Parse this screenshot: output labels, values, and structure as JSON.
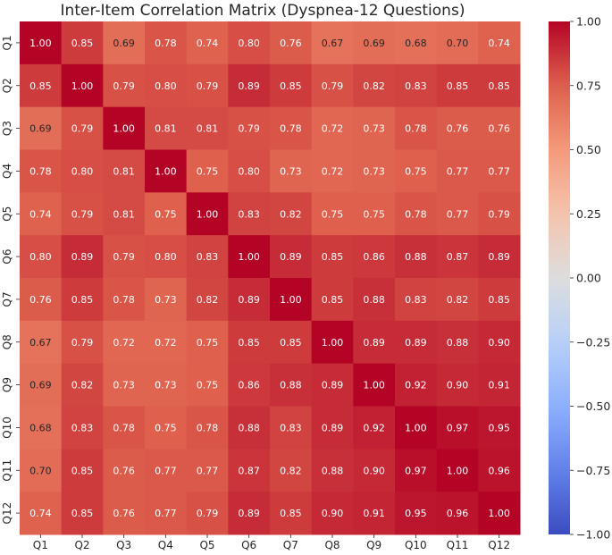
{
  "chart_data": {
    "type": "heatmap",
    "title": "Inter-Item Correlation Matrix (Dyspnea-12 Questions)",
    "xlabel": "",
    "ylabel": "",
    "x_categories": [
      "Q1",
      "Q2",
      "Q3",
      "Q4",
      "Q5",
      "Q6",
      "Q7",
      "Q8",
      "Q9",
      "Q10",
      "Q11",
      "Q12"
    ],
    "y_categories": [
      "Q1",
      "Q2",
      "Q3",
      "Q4",
      "Q5",
      "Q6",
      "Q7",
      "Q8",
      "Q9",
      "Q10",
      "Q11",
      "Q12"
    ],
    "values": [
      [
        1.0,
        0.85,
        0.69,
        0.78,
        0.74,
        0.8,
        0.76,
        0.67,
        0.69,
        0.68,
        0.7,
        0.74
      ],
      [
        0.85,
        1.0,
        0.79,
        0.8,
        0.79,
        0.89,
        0.85,
        0.79,
        0.82,
        0.83,
        0.85,
        0.85
      ],
      [
        0.69,
        0.79,
        1.0,
        0.81,
        0.81,
        0.79,
        0.78,
        0.72,
        0.73,
        0.78,
        0.76,
        0.76
      ],
      [
        0.78,
        0.8,
        0.81,
        1.0,
        0.75,
        0.8,
        0.73,
        0.72,
        0.73,
        0.75,
        0.77,
        0.77
      ],
      [
        0.74,
        0.79,
        0.81,
        0.75,
        1.0,
        0.83,
        0.82,
        0.75,
        0.75,
        0.78,
        0.77,
        0.79
      ],
      [
        0.8,
        0.89,
        0.79,
        0.8,
        0.83,
        1.0,
        0.89,
        0.85,
        0.86,
        0.88,
        0.87,
        0.89
      ],
      [
        0.76,
        0.85,
        0.78,
        0.73,
        0.82,
        0.89,
        1.0,
        0.85,
        0.88,
        0.83,
        0.82,
        0.85
      ],
      [
        0.67,
        0.79,
        0.72,
        0.72,
        0.75,
        0.85,
        0.85,
        1.0,
        0.89,
        0.89,
        0.88,
        0.9
      ],
      [
        0.69,
        0.82,
        0.73,
        0.73,
        0.75,
        0.86,
        0.88,
        0.89,
        1.0,
        0.92,
        0.9,
        0.91
      ],
      [
        0.68,
        0.83,
        0.78,
        0.75,
        0.78,
        0.88,
        0.83,
        0.89,
        0.92,
        1.0,
        0.97,
        0.95
      ],
      [
        0.7,
        0.85,
        0.76,
        0.77,
        0.77,
        0.87,
        0.82,
        0.88,
        0.9,
        0.97,
        1.0,
        0.96
      ],
      [
        0.74,
        0.85,
        0.76,
        0.77,
        0.79,
        0.89,
        0.85,
        0.9,
        0.91,
        0.95,
        0.96,
        1.0
      ]
    ],
    "colormap": "coolwarm",
    "vmin": -1.0,
    "vmax": 1.0,
    "value_format": "0.00",
    "colorbar": {
      "ticks": [
        1.0,
        0.75,
        0.5,
        0.25,
        0.0,
        -0.25,
        -0.5,
        -0.75,
        -1.0
      ],
      "tick_labels": [
        "1.00",
        "0.75",
        "0.50",
        "0.25",
        "0.00",
        "−0.25",
        "−0.50",
        "−0.75",
        "−1.00"
      ]
    },
    "colors": {
      "text_dark": "#262626",
      "text_light": "#ffffff",
      "coolwarm_low": "#3b4cc0",
      "coolwarm_mid": "#dddddd",
      "coolwarm_high": "#b40426"
    }
  }
}
